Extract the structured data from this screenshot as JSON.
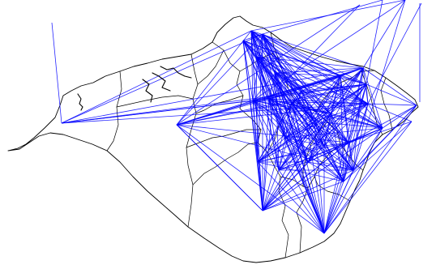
{
  "map": {
    "background_color": "#ffffff",
    "boundary_color": "#000000",
    "connection_color": "#0000ff"
  }
}
